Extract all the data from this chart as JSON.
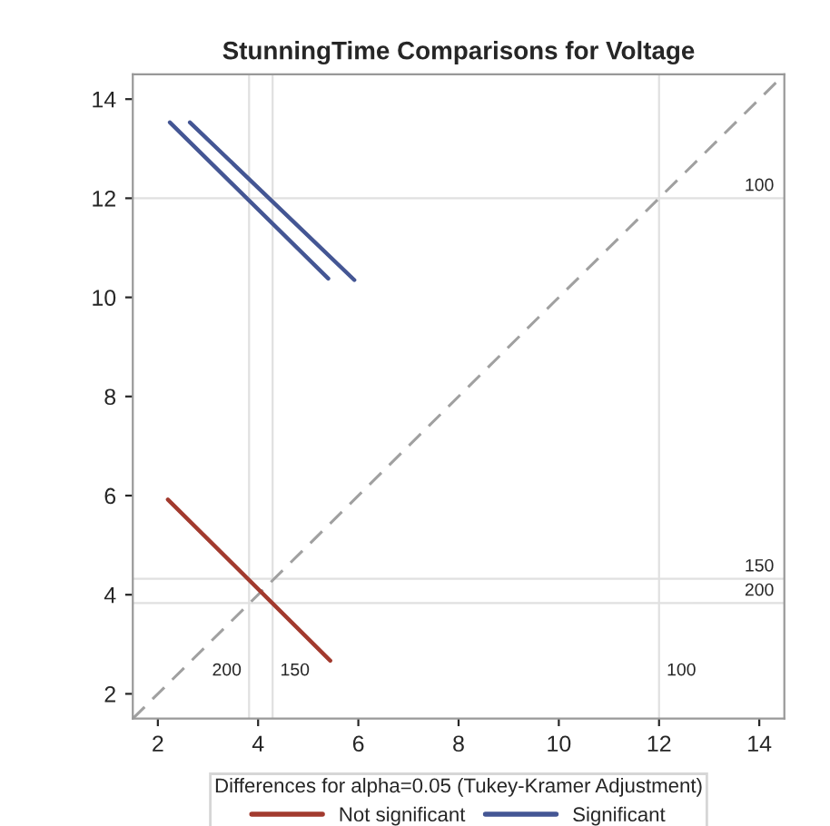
{
  "chart_data": {
    "type": "line",
    "title": "StunningTime Comparisons for Voltage",
    "legend_title": "Differences for alpha=0.05 (Tukey-Kramer Adjustment)",
    "xlim": [
      1.5,
      14.5
    ],
    "ylim": [
      1.5,
      14.5
    ],
    "xticks": [
      2,
      4,
      6,
      8,
      10,
      12,
      14
    ],
    "yticks": [
      2,
      4,
      6,
      8,
      10,
      12,
      14
    ],
    "series": [
      {
        "color": "#a0a0a0",
        "line_style": "dashed",
        "x": [
          1.5,
          14.5
        ],
        "values": [
          1.5,
          14.5
        ]
      },
      {
        "name": "Not significant",
        "color": "#a23a2e",
        "x": [
          2.2,
          5.44
        ],
        "values": [
          5.92,
          2.67
        ]
      },
      {
        "name": "Significant",
        "color": "#445694",
        "x": [
          2.24,
          5.4
        ],
        "values": [
          13.53,
          10.38
        ]
      },
      {
        "color": "#445694",
        "x": [
          2.64,
          5.92
        ],
        "values": [
          13.53,
          10.35
        ]
      }
    ],
    "ref_lines": [
      {
        "axis": "x",
        "value": 3.82,
        "color": "#e0e0e0"
      },
      {
        "axis": "x",
        "value": 4.29,
        "color": "#e0e0e0"
      },
      {
        "axis": "x",
        "value": 12.0,
        "color": "#e0e0e0"
      },
      {
        "axis": "y",
        "value": 12.0,
        "color": "#e0e0e0"
      },
      {
        "axis": "y",
        "value": 4.32,
        "color": "#e0e0e0"
      },
      {
        "axis": "y",
        "value": 3.83,
        "color": "#e0e0e0"
      }
    ],
    "annotations": [
      {
        "text": "200",
        "x": 3.82,
        "y": 2.46
      },
      {
        "text": "150",
        "x": 4.29,
        "y": 2.46
      },
      {
        "text": "100",
        "x": 12.0,
        "y": 2.46
      },
      {
        "text": "100",
        "x": 14.0,
        "y": 12.0
      },
      {
        "text": "150",
        "x": 14.0,
        "y": 4.32
      },
      {
        "text": "200",
        "x": 14.0,
        "y": 3.83
      }
    ],
    "grid": false,
    "legend": "bottom"
  }
}
